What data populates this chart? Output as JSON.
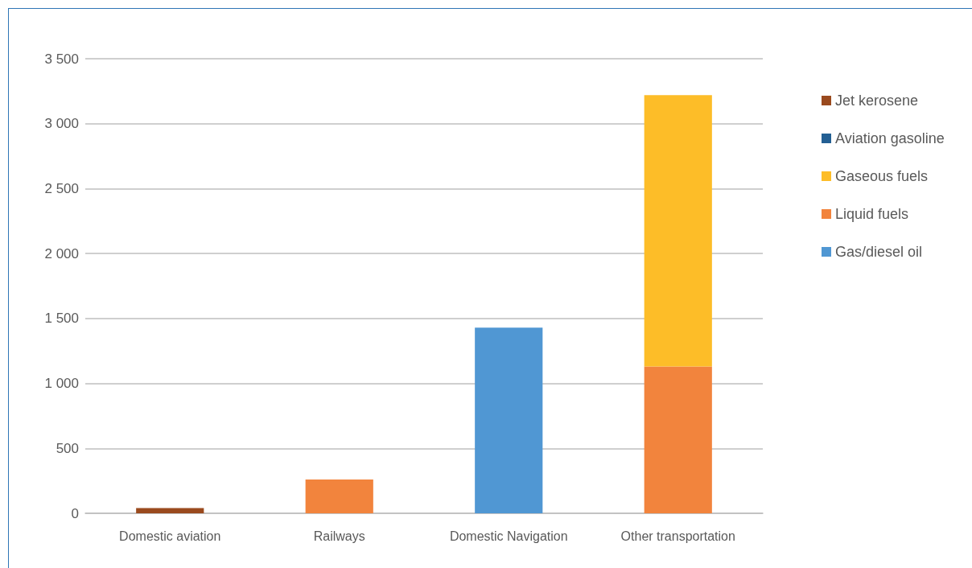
{
  "chart_data": {
    "type": "bar",
    "stacked": true,
    "categories": [
      "Domestic aviation",
      "Railways",
      "Domestic Navigation",
      "Other transportation"
    ],
    "series": [
      {
        "name": "Gas/diesel oil",
        "color": "#5097d3",
        "values": [
          null,
          null,
          1430,
          null
        ]
      },
      {
        "name": "Liquid fuels",
        "color": "#f2843d",
        "values": [
          null,
          260,
          null,
          1130
        ]
      },
      {
        "name": "Gaseous fuels",
        "color": "#fdbd28",
        "values": [
          null,
          null,
          null,
          2090
        ]
      },
      {
        "name": "Aviation gasoline",
        "color": "#235f93",
        "values": [
          null,
          null,
          null,
          null
        ]
      },
      {
        "name": "Jet kerosene",
        "color": "#9a4a1e",
        "values": [
          40,
          null,
          null,
          null
        ]
      }
    ],
    "ylim": [
      0,
      3500
    ],
    "yticks": [
      0,
      500,
      1000,
      1500,
      2000,
      2500,
      3000,
      3500
    ],
    "grid": "y",
    "legend": "right"
  }
}
